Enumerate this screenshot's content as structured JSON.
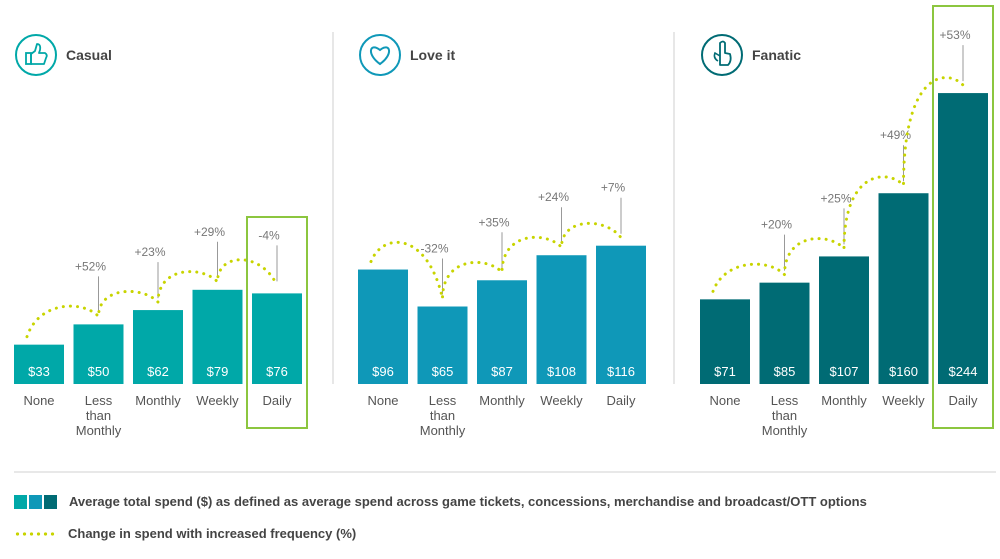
{
  "chart_data": {
    "type": "bar",
    "categories": [
      "None",
      "Less than Monthly",
      "Monthly",
      "Weekly",
      "Daily"
    ],
    "category_lines": [
      [
        "None"
      ],
      [
        "Less",
        "than",
        "Monthly"
      ],
      [
        "Monthly"
      ],
      [
        "Weekly"
      ],
      [
        "Daily"
      ]
    ],
    "ylim": [
      0,
      260
    ],
    "panels": [
      {
        "title": "Casual",
        "icon": "thumbs-up-icon",
        "color": "#00a8a8",
        "values": [
          33,
          50,
          62,
          79,
          76
        ],
        "value_labels": [
          "$33",
          "$50",
          "$62",
          "$79",
          "$76"
        ],
        "changes": [
          "",
          "+52%",
          "+23%",
          "+29%",
          "-4%"
        ],
        "highlight_index": 4
      },
      {
        "title": "Love it",
        "icon": "heart-icon",
        "color": "#0f98b8",
        "values": [
          96,
          65,
          87,
          108,
          116
        ],
        "value_labels": [
          "$96",
          "$65",
          "$87",
          "$108",
          "$116"
        ],
        "changes": [
          "",
          "-32%",
          "+35%",
          "+24%",
          "+7%"
        ],
        "highlight_index": null
      },
      {
        "title": "Fanatic",
        "icon": "pointing-finger-icon",
        "color": "#006b74",
        "values": [
          71,
          85,
          107,
          160,
          244
        ],
        "value_labels": [
          "$71",
          "$85",
          "$107",
          "$160",
          "$244"
        ],
        "changes": [
          "",
          "+20%",
          "+25%",
          "+49%",
          "+53%"
        ],
        "highlight_index": 4
      }
    ],
    "colors": {
      "accent_green": "#8cc63f",
      "dotted_line": "#c8d400",
      "separator": "#cfcfcf",
      "text": "#555555"
    }
  },
  "legend": {
    "bars_label": "Average total spend ($) as defined as average spend across game tickets, concessions, merchandise and broadcast/OTT options",
    "bars_colors": [
      "#00a8a8",
      "#0f98b8",
      "#006b74"
    ],
    "line_label": "Change in spend with increased frequency (%)"
  }
}
